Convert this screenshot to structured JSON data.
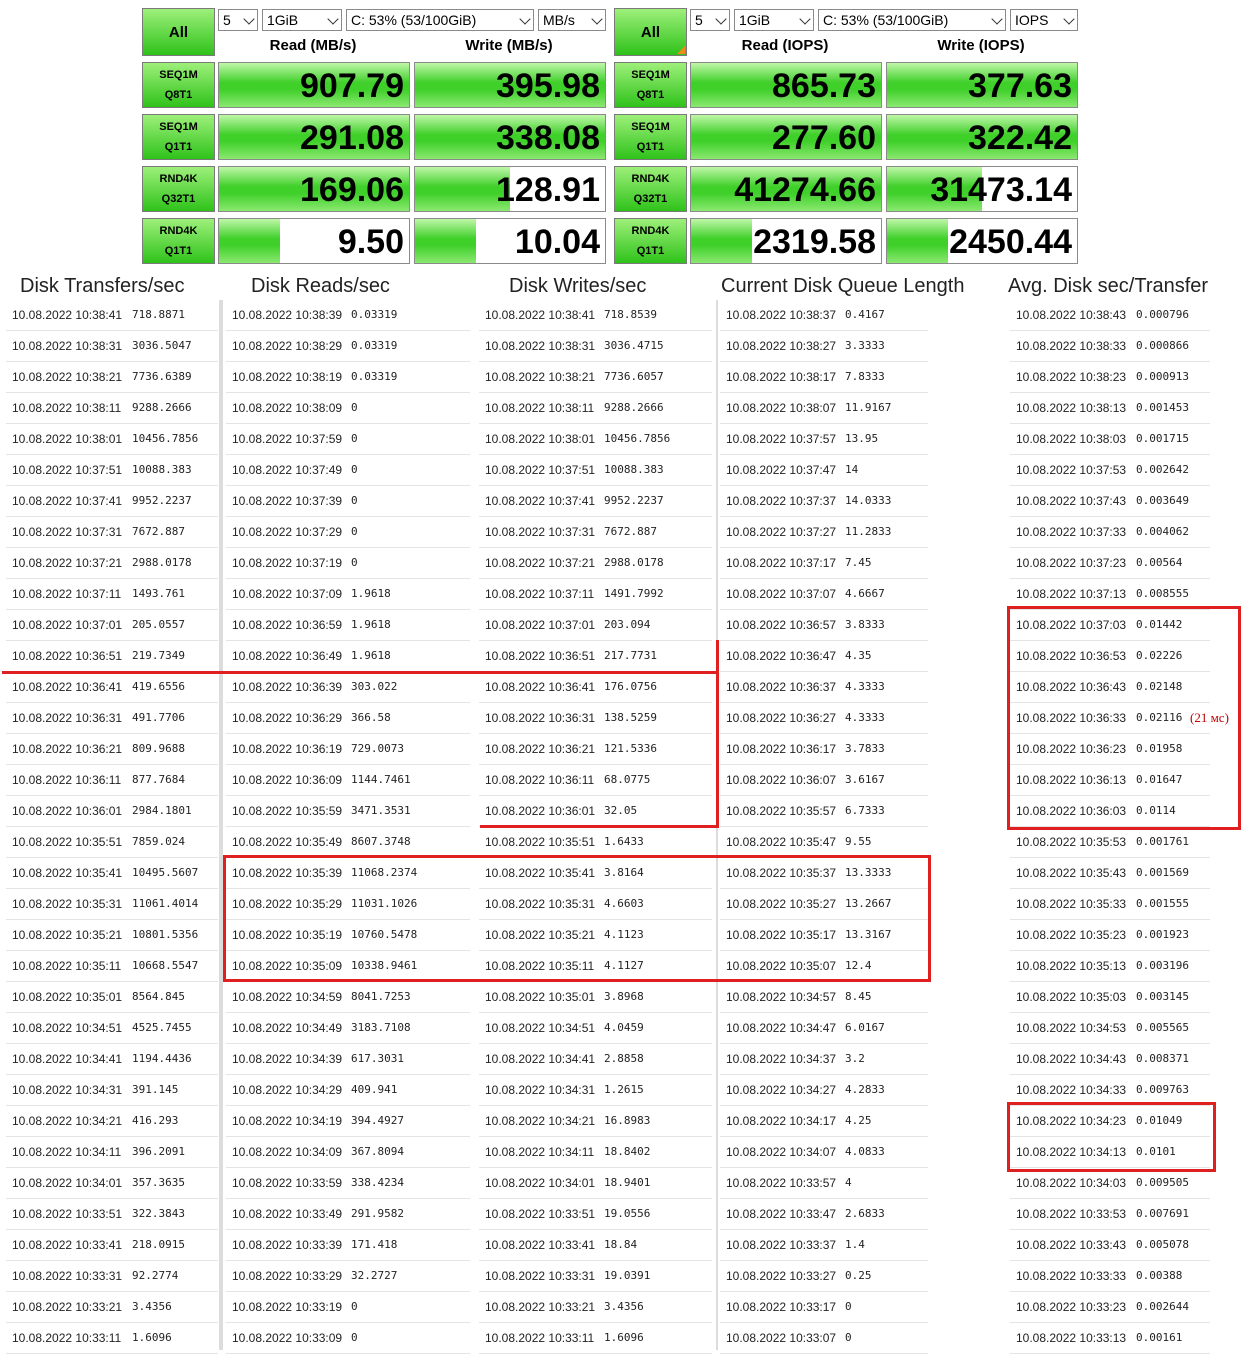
{
  "panels": [
    {
      "all_label": "All",
      "count": "5",
      "size": "1GiB",
      "drive": "C: 53% (53/100GiB)",
      "unit": "MB/s",
      "headers": [
        "Read (MB/s)",
        "Write (MB/s)"
      ],
      "rows": [
        {
          "l1": "SEQ1M",
          "l2": "Q8T1",
          "read": "907.79",
          "write": "395.98",
          "read_fill": 1.0,
          "write_fill": 1.0
        },
        {
          "l1": "SEQ1M",
          "l2": "Q1T1",
          "read": "291.08",
          "write": "338.08",
          "read_fill": 1.0,
          "write_fill": 1.0
        },
        {
          "l1": "RND4K",
          "l2": "Q32T1",
          "read": "169.06",
          "write": "128.91",
          "read_fill": 1.0,
          "write_fill": 0.5
        },
        {
          "l1": "RND4K",
          "l2": "Q1T1",
          "read": "9.50",
          "write": "10.04",
          "read_fill": 0.32,
          "write_fill": 0.32
        }
      ]
    },
    {
      "all_label": "All",
      "count": "5",
      "size": "1GiB",
      "drive": "C: 53% (53/100GiB)",
      "unit": "IOPS",
      "headers": [
        "Read (IOPS)",
        "Write (IOPS)"
      ],
      "rows": [
        {
          "l1": "SEQ1M",
          "l2": "Q8T1",
          "read": "865.73",
          "write": "377.63",
          "read_fill": 1.0,
          "write_fill": 1.0
        },
        {
          "l1": "SEQ1M",
          "l2": "Q1T1",
          "read": "277.60",
          "write": "322.42",
          "read_fill": 1.0,
          "write_fill": 1.0
        },
        {
          "l1": "RND4K",
          "l2": "Q32T1",
          "read": "41274.66",
          "write": "31473.14",
          "read_fill": 1.0,
          "write_fill": 0.5
        },
        {
          "l1": "RND4K",
          "l2": "Q1T1",
          "read": "2319.58",
          "write": "2450.44",
          "read_fill": 0.32,
          "write_fill": 0.32
        }
      ]
    }
  ],
  "tables": [
    {
      "title": "Disk Transfers/sec",
      "rows": [
        [
          "10.08.2022 10:38:41",
          "718.8871"
        ],
        [
          "10.08.2022 10:38:31",
          "3036.5047"
        ],
        [
          "10.08.2022 10:38:21",
          "7736.6389"
        ],
        [
          "10.08.2022 10:38:11",
          "9288.2666"
        ],
        [
          "10.08.2022 10:38:01",
          "10456.7856"
        ],
        [
          "10.08.2022 10:37:51",
          "10088.383"
        ],
        [
          "10.08.2022 10:37:41",
          "9952.2237"
        ],
        [
          "10.08.2022 10:37:31",
          "7672.887"
        ],
        [
          "10.08.2022 10:37:21",
          "2988.0178"
        ],
        [
          "10.08.2022 10:37:11",
          "1493.761"
        ],
        [
          "10.08.2022 10:37:01",
          "205.0557"
        ],
        [
          "10.08.2022 10:36:51",
          "219.7349"
        ],
        [
          "10.08.2022 10:36:41",
          "419.6556"
        ],
        [
          "10.08.2022 10:36:31",
          "491.7706"
        ],
        [
          "10.08.2022 10:36:21",
          "809.9688"
        ],
        [
          "10.08.2022 10:36:11",
          "877.7684"
        ],
        [
          "10.08.2022 10:36:01",
          "2984.1801"
        ],
        [
          "10.08.2022 10:35:51",
          "7859.024"
        ],
        [
          "10.08.2022 10:35:41",
          "10495.5607"
        ],
        [
          "10.08.2022 10:35:31",
          "11061.4014"
        ],
        [
          "10.08.2022 10:35:21",
          "10801.5356"
        ],
        [
          "10.08.2022 10:35:11",
          "10668.5547"
        ],
        [
          "10.08.2022 10:35:01",
          "8564.845"
        ],
        [
          "10.08.2022 10:34:51",
          "4525.7455"
        ],
        [
          "10.08.2022 10:34:41",
          "1194.4436"
        ],
        [
          "10.08.2022 10:34:31",
          "391.145"
        ],
        [
          "10.08.2022 10:34:21",
          "416.293"
        ],
        [
          "10.08.2022 10:34:11",
          "396.2091"
        ],
        [
          "10.08.2022 10:34:01",
          "357.3635"
        ],
        [
          "10.08.2022 10:33:51",
          "322.3843"
        ],
        [
          "10.08.2022 10:33:41",
          "218.0915"
        ],
        [
          "10.08.2022 10:33:31",
          "92.2774"
        ],
        [
          "10.08.2022 10:33:21",
          "3.4356"
        ],
        [
          "10.08.2022 10:33:11",
          "1.6096"
        ]
      ]
    },
    {
      "title": "Disk Reads/sec",
      "rows": [
        [
          "10.08.2022 10:38:39",
          "0.03319"
        ],
        [
          "10.08.2022 10:38:29",
          "0.03319"
        ],
        [
          "10.08.2022 10:38:19",
          "0.03319"
        ],
        [
          "10.08.2022 10:38:09",
          "0"
        ],
        [
          "10.08.2022 10:37:59",
          "0"
        ],
        [
          "10.08.2022 10:37:49",
          "0"
        ],
        [
          "10.08.2022 10:37:39",
          "0"
        ],
        [
          "10.08.2022 10:37:29",
          "0"
        ],
        [
          "10.08.2022 10:37:19",
          "0"
        ],
        [
          "10.08.2022 10:37:09",
          "1.9618"
        ],
        [
          "10.08.2022 10:36:59",
          "1.9618"
        ],
        [
          "10.08.2022 10:36:49",
          "1.9618"
        ],
        [
          "10.08.2022 10:36:39",
          "303.022"
        ],
        [
          "10.08.2022 10:36:29",
          "366.58"
        ],
        [
          "10.08.2022 10:36:19",
          "729.0073"
        ],
        [
          "10.08.2022 10:36:09",
          "1144.7461"
        ],
        [
          "10.08.2022 10:35:59",
          "3471.3531"
        ],
        [
          "10.08.2022 10:35:49",
          "8607.3748"
        ],
        [
          "10.08.2022 10:35:39",
          "11068.2374"
        ],
        [
          "10.08.2022 10:35:29",
          "11031.1026"
        ],
        [
          "10.08.2022 10:35:19",
          "10760.5478"
        ],
        [
          "10.08.2022 10:35:09",
          "10338.9461"
        ],
        [
          "10.08.2022 10:34:59",
          "8041.7253"
        ],
        [
          "10.08.2022 10:34:49",
          "3183.7108"
        ],
        [
          "10.08.2022 10:34:39",
          "617.3031"
        ],
        [
          "10.08.2022 10:34:29",
          "409.941"
        ],
        [
          "10.08.2022 10:34:19",
          "394.4927"
        ],
        [
          "10.08.2022 10:34:09",
          "367.8094"
        ],
        [
          "10.08.2022 10:33:59",
          "338.4234"
        ],
        [
          "10.08.2022 10:33:49",
          "291.9582"
        ],
        [
          "10.08.2022 10:33:39",
          "171.418"
        ],
        [
          "10.08.2022 10:33:29",
          "32.2727"
        ],
        [
          "10.08.2022 10:33:19",
          "0"
        ],
        [
          "10.08.2022 10:33:09",
          "0"
        ]
      ]
    },
    {
      "title": "Disk Writes/sec",
      "rows": [
        [
          "10.08.2022 10:38:41",
          "718.8539"
        ],
        [
          "10.08.2022 10:38:31",
          "3036.4715"
        ],
        [
          "10.08.2022 10:38:21",
          "7736.6057"
        ],
        [
          "10.08.2022 10:38:11",
          "9288.2666"
        ],
        [
          "10.08.2022 10:38:01",
          "10456.7856"
        ],
        [
          "10.08.2022 10:37:51",
          "10088.383"
        ],
        [
          "10.08.2022 10:37:41",
          "9952.2237"
        ],
        [
          "10.08.2022 10:37:31",
          "7672.887"
        ],
        [
          "10.08.2022 10:37:21",
          "2988.0178"
        ],
        [
          "10.08.2022 10:37:11",
          "1491.7992"
        ],
        [
          "10.08.2022 10:37:01",
          "203.094"
        ],
        [
          "10.08.2022 10:36:51",
          "217.7731"
        ],
        [
          "10.08.2022 10:36:41",
          "176.0756"
        ],
        [
          "10.08.2022 10:36:31",
          "138.5259"
        ],
        [
          "10.08.2022 10:36:21",
          "121.5336"
        ],
        [
          "10.08.2022 10:36:11",
          "68.0775"
        ],
        [
          "10.08.2022 10:36:01",
          "32.05"
        ],
        [
          "10.08.2022 10:35:51",
          "1.6433"
        ],
        [
          "10.08.2022 10:35:41",
          "3.8164"
        ],
        [
          "10.08.2022 10:35:31",
          "4.6603"
        ],
        [
          "10.08.2022 10:35:21",
          "4.1123"
        ],
        [
          "10.08.2022 10:35:11",
          "4.1127"
        ],
        [
          "10.08.2022 10:35:01",
          "3.8968"
        ],
        [
          "10.08.2022 10:34:51",
          "4.0459"
        ],
        [
          "10.08.2022 10:34:41",
          "2.8858"
        ],
        [
          "10.08.2022 10:34:31",
          "1.2615"
        ],
        [
          "10.08.2022 10:34:21",
          "16.8983"
        ],
        [
          "10.08.2022 10:34:11",
          "18.8402"
        ],
        [
          "10.08.2022 10:34:01",
          "18.9401"
        ],
        [
          "10.08.2022 10:33:51",
          "19.0556"
        ],
        [
          "10.08.2022 10:33:41",
          "18.84"
        ],
        [
          "10.08.2022 10:33:31",
          "19.0391"
        ],
        [
          "10.08.2022 10:33:21",
          "3.4356"
        ],
        [
          "10.08.2022 10:33:11",
          "1.6096"
        ]
      ]
    },
    {
      "title": "Current Disk Queue Length",
      "rows": [
        [
          "10.08.2022 10:38:37",
          "0.4167"
        ],
        [
          "10.08.2022 10:38:27",
          "3.3333"
        ],
        [
          "10.08.2022 10:38:17",
          "7.8333"
        ],
        [
          "10.08.2022 10:38:07",
          "11.9167"
        ],
        [
          "10.08.2022 10:37:57",
          "13.95"
        ],
        [
          "10.08.2022 10:37:47",
          "14"
        ],
        [
          "10.08.2022 10:37:37",
          "14.0333"
        ],
        [
          "10.08.2022 10:37:27",
          "11.2833"
        ],
        [
          "10.08.2022 10:37:17",
          "7.45"
        ],
        [
          "10.08.2022 10:37:07",
          "4.6667"
        ],
        [
          "10.08.2022 10:36:57",
          "3.8333"
        ],
        [
          "10.08.2022 10:36:47",
          "4.35"
        ],
        [
          "10.08.2022 10:36:37",
          "4.3333"
        ],
        [
          "10.08.2022 10:36:27",
          "4.3333"
        ],
        [
          "10.08.2022 10:36:17",
          "3.7833"
        ],
        [
          "10.08.2022 10:36:07",
          "3.6167"
        ],
        [
          "10.08.2022 10:35:57",
          "6.7333"
        ],
        [
          "10.08.2022 10:35:47",
          "9.55"
        ],
        [
          "10.08.2022 10:35:37",
          "13.3333"
        ],
        [
          "10.08.2022 10:35:27",
          "13.2667"
        ],
        [
          "10.08.2022 10:35:17",
          "13.3167"
        ],
        [
          "10.08.2022 10:35:07",
          "12.4"
        ],
        [
          "10.08.2022 10:34:57",
          "8.45"
        ],
        [
          "10.08.2022 10:34:47",
          "6.0167"
        ],
        [
          "10.08.2022 10:34:37",
          "3.2"
        ],
        [
          "10.08.2022 10:34:27",
          "4.2833"
        ],
        [
          "10.08.2022 10:34:17",
          "4.25"
        ],
        [
          "10.08.2022 10:34:07",
          "4.0833"
        ],
        [
          "10.08.2022 10:33:57",
          "4"
        ],
        [
          "10.08.2022 10:33:47",
          "2.6833"
        ],
        [
          "10.08.2022 10:33:37",
          "1.4"
        ],
        [
          "10.08.2022 10:33:27",
          "0.25"
        ],
        [
          "10.08.2022 10:33:17",
          "0"
        ],
        [
          "10.08.2022 10:33:07",
          "0"
        ]
      ]
    },
    {
      "title": "Avg. Disk sec/Transfer",
      "rows": [
        [
          "10.08.2022 10:38:43",
          "0.000796"
        ],
        [
          "10.08.2022 10:38:33",
          "0.000866"
        ],
        [
          "10.08.2022 10:38:23",
          "0.000913"
        ],
        [
          "10.08.2022 10:38:13",
          "0.001453"
        ],
        [
          "10.08.2022 10:38:03",
          "0.001715"
        ],
        [
          "10.08.2022 10:37:53",
          "0.002642"
        ],
        [
          "10.08.2022 10:37:43",
          "0.003649"
        ],
        [
          "10.08.2022 10:37:33",
          "0.004062"
        ],
        [
          "10.08.2022 10:37:23",
          "0.00564"
        ],
        [
          "10.08.2022 10:37:13",
          "0.008555"
        ],
        [
          "10.08.2022 10:37:03",
          "0.01442"
        ],
        [
          "10.08.2022 10:36:53",
          "0.02226"
        ],
        [
          "10.08.2022 10:36:43",
          "0.02148"
        ],
        [
          "10.08.2022 10:36:33",
          "0.02116"
        ],
        [
          "10.08.2022 10:36:23",
          "0.01958"
        ],
        [
          "10.08.2022 10:36:13",
          "0.01647"
        ],
        [
          "10.08.2022 10:36:03",
          "0.0114"
        ],
        [
          "10.08.2022 10:35:53",
          "0.001761"
        ],
        [
          "10.08.2022 10:35:43",
          "0.001569"
        ],
        [
          "10.08.2022 10:35:33",
          "0.001555"
        ],
        [
          "10.08.2022 10:35:23",
          "0.001923"
        ],
        [
          "10.08.2022 10:35:13",
          "0.003196"
        ],
        [
          "10.08.2022 10:35:03",
          "0.003145"
        ],
        [
          "10.08.2022 10:34:53",
          "0.005565"
        ],
        [
          "10.08.2022 10:34:43",
          "0.008371"
        ],
        [
          "10.08.2022 10:34:33",
          "0.009763"
        ],
        [
          "10.08.2022 10:34:23",
          "0.01049"
        ],
        [
          "10.08.2022 10:34:13",
          "0.0101"
        ],
        [
          "10.08.2022 10:34:03",
          "0.009505"
        ],
        [
          "10.08.2022 10:33:53",
          "0.007691"
        ],
        [
          "10.08.2022 10:33:43",
          "0.005078"
        ],
        [
          "10.08.2022 10:33:33",
          "0.00388"
        ],
        [
          "10.08.2022 10:33:23",
          "0.002644"
        ],
        [
          "10.08.2022 10:33:13",
          "0.00161"
        ]
      ]
    }
  ],
  "annotation": {
    "note": "(21 мс)",
    "accent": "#e02020"
  }
}
